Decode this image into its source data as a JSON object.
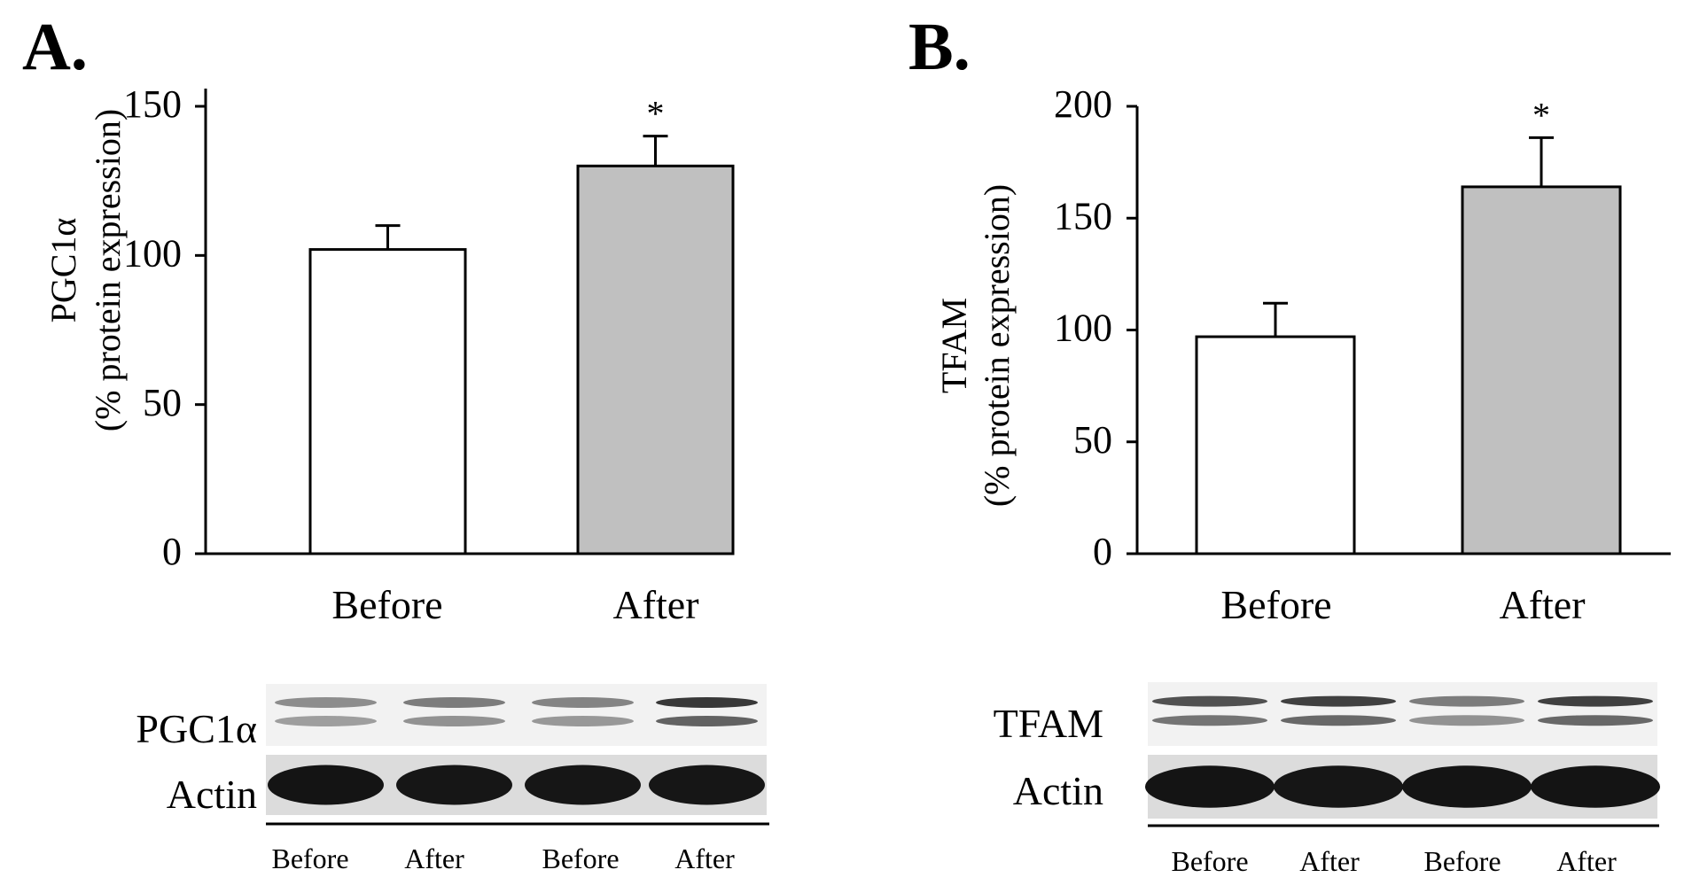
{
  "chart_data": [
    {
      "panel": "A.",
      "type": "bar",
      "categories": [
        "Before",
        "After"
      ],
      "values": [
        102,
        130
      ],
      "errors": [
        8,
        10
      ],
      "bar_colors": [
        "#ffffff",
        "#c0c0c0"
      ],
      "significance": [
        "",
        "*"
      ],
      "ylabel": [
        "PGC1α",
        "(% protein expression)"
      ],
      "ylim": [
        0,
        150
      ],
      "yticks": [
        0,
        50,
        100,
        150
      ],
      "grid": false,
      "blot": {
        "rows": [
          {
            "label": "PGC1α",
            "intensities": [
              0.35,
              0.45,
              0.4,
              0.85
            ]
          },
          {
            "label": "Actin",
            "intensities": [
              1,
              0.95,
              0.95,
              0.95
            ]
          }
        ],
        "lanes": [
          "Before",
          "After",
          "Before",
          "After"
        ]
      }
    },
    {
      "panel": "B.",
      "type": "bar",
      "categories": [
        "Before",
        "After"
      ],
      "values": [
        97,
        164
      ],
      "errors": [
        15,
        22
      ],
      "bar_colors": [
        "#ffffff",
        "#c0c0c0"
      ],
      "significance": [
        "",
        "*"
      ],
      "ylabel": [
        "TFAM",
        "(% protein expression)"
      ],
      "ylim": [
        0,
        200
      ],
      "yticks": [
        0,
        50,
        100,
        150,
        200
      ],
      "grid": false,
      "blot": {
        "rows": [
          {
            "label": "TFAM",
            "intensities": [
              0.7,
              0.8,
              0.45,
              0.8
            ]
          },
          {
            "label": "Actin",
            "intensities": [
              1,
              0.95,
              1,
              1
            ]
          }
        ],
        "lanes": [
          "Before",
          "After",
          "Before",
          "After"
        ]
      }
    }
  ]
}
